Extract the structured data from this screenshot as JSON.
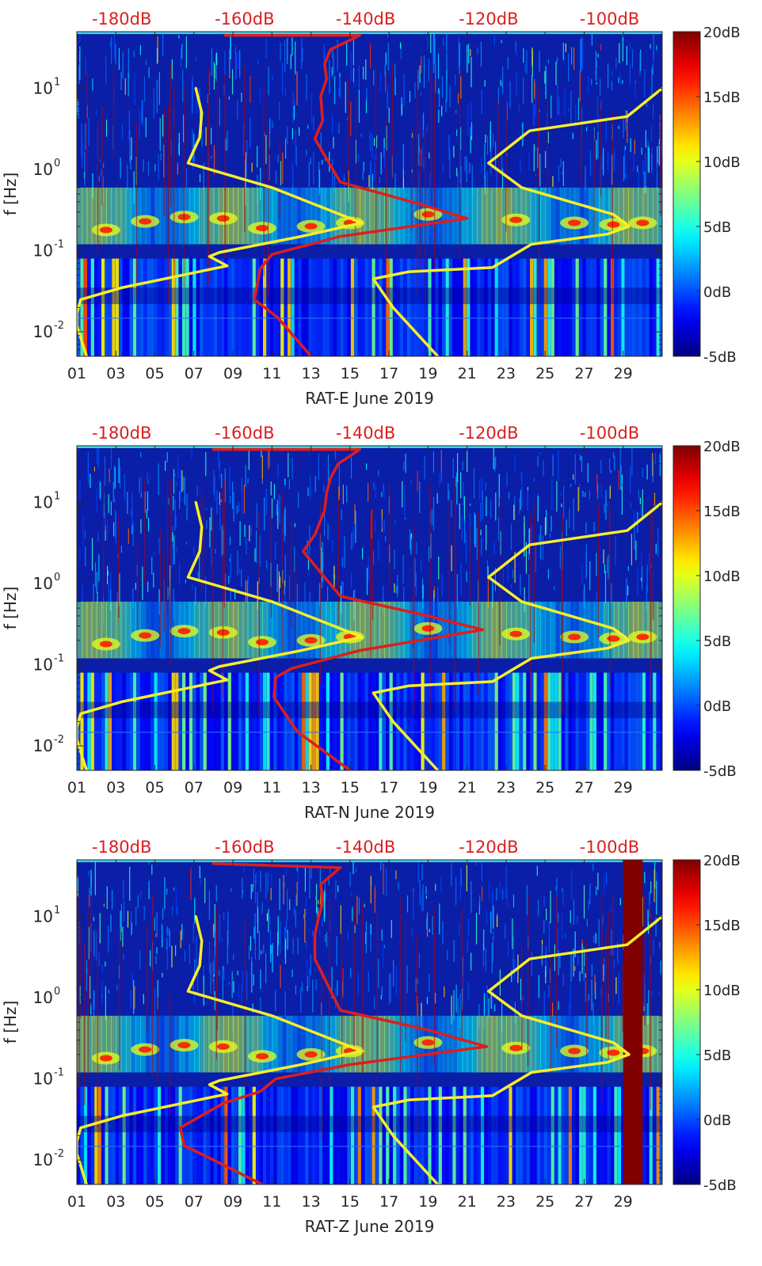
{
  "chart_data": [
    {
      "type": "heatmap",
      "title": "",
      "xlabel": "RAT-E June 2019",
      "ylabel": "f [Hz]",
      "x_tick_labels": [
        "01",
        "03",
        "05",
        "07",
        "09",
        "11",
        "13",
        "15",
        "17",
        "19",
        "21",
        "23",
        "25",
        "27",
        "29"
      ],
      "x_tick_days": [
        1,
        3,
        5,
        7,
        9,
        11,
        13,
        15,
        17,
        19,
        21,
        23,
        25,
        27,
        29
      ],
      "xlim": [
        1,
        31
      ],
      "y_scale": "log",
      "ylim": [
        0.005,
        50
      ],
      "y_tick_values": [
        0.01,
        0.1,
        1,
        10
      ],
      "y_tick_bases": [
        "10",
        "10",
        "10",
        "10"
      ],
      "y_tick_exponents": [
        "-2",
        "-1",
        "0",
        "1"
      ],
      "top_axis_labels": [
        "-180dB",
        "-160dB",
        "-140dB",
        "-120dB",
        "-100dB"
      ],
      "top_axis_days": [
        3.3,
        9.6,
        15.8,
        22.1,
        28.3
      ],
      "colorbar": {
        "labels": [
          "20dB",
          "15dB",
          "10dB",
          "5dB",
          "0dB",
          "-5dB"
        ],
        "range": [
          -5,
          20
        ]
      },
      "series": [
        {
          "name": "yellow line low",
          "points": [
            [
              1.5,
              0.005
            ],
            [
              1,
              0.012
            ],
            [
              1,
              0.017
            ],
            [
              1.2,
              0.025
            ],
            [
              3.3,
              0.035
            ],
            [
              7.7,
              0.058
            ],
            [
              8.7,
              0.065
            ],
            [
              7.8,
              0.085
            ],
            [
              8.3,
              0.095
            ],
            [
              12.5,
              0.15
            ],
            [
              15.6,
              0.22
            ],
            [
              11,
              0.6
            ],
            [
              6.7,
              1.2
            ],
            [
              7.3,
              2.5
            ],
            [
              7.4,
              5
            ],
            [
              7.1,
              10
            ]
          ]
        },
        {
          "name": "yellow line high",
          "points": [
            [
              19.5,
              0.005
            ],
            [
              17.2,
              0.02
            ],
            [
              16.2,
              0.045
            ],
            [
              18,
              0.055
            ],
            [
              22.3,
              0.062
            ],
            [
              24.3,
              0.12
            ],
            [
              28.2,
              0.16
            ],
            [
              29.3,
              0.2
            ],
            [
              28.5,
              0.28
            ],
            [
              23.8,
              0.6
            ],
            [
              22.1,
              1.2
            ],
            [
              24.2,
              3
            ],
            [
              29.2,
              4.5
            ],
            [
              31,
              10
            ]
          ]
        },
        {
          "name": "red line",
          "points": [
            [
              13,
              0.005
            ],
            [
              11.3,
              0.015
            ],
            [
              10.1,
              0.025
            ],
            [
              10.4,
              0.06
            ],
            [
              11,
              0.09
            ],
            [
              14.5,
              0.15
            ],
            [
              21,
              0.25
            ],
            [
              18.5,
              0.38
            ],
            [
              14.5,
              0.7
            ],
            [
              13.2,
              2.4
            ],
            [
              13.6,
              4
            ],
            [
              13.5,
              8
            ],
            [
              13.8,
              13
            ],
            [
              13.7,
              20
            ],
            [
              14,
              30
            ],
            [
              15.5,
              45
            ],
            [
              8.6,
              45
            ]
          ]
        }
      ],
      "visual_features": {
        "saturated_band": null
      }
    },
    {
      "type": "heatmap",
      "title": "",
      "xlabel": "RAT-N June 2019",
      "ylabel": "f [Hz]",
      "x_tick_labels": [
        "01",
        "03",
        "05",
        "07",
        "09",
        "11",
        "13",
        "15",
        "17",
        "19",
        "21",
        "23",
        "25",
        "27",
        "29"
      ],
      "x_tick_days": [
        1,
        3,
        5,
        7,
        9,
        11,
        13,
        15,
        17,
        19,
        21,
        23,
        25,
        27,
        29
      ],
      "xlim": [
        1,
        31
      ],
      "y_scale": "log",
      "ylim": [
        0.005,
        50
      ],
      "y_tick_values": [
        0.01,
        0.1,
        1,
        10
      ],
      "y_tick_bases": [
        "10",
        "10",
        "10",
        "10"
      ],
      "y_tick_exponents": [
        "-2",
        "-1",
        "0",
        "1"
      ],
      "top_axis_labels": [
        "-180dB",
        "-160dB",
        "-140dB",
        "-120dB",
        "-100dB"
      ],
      "top_axis_days": [
        3.3,
        9.6,
        15.8,
        22.1,
        28.3
      ],
      "colorbar": {
        "labels": [
          "20dB",
          "15dB",
          "10dB",
          "5dB",
          "0dB",
          "-5dB"
        ],
        "range": [
          -5,
          20
        ]
      },
      "series": [
        {
          "name": "yellow line low",
          "points": [
            [
              1.5,
              0.005
            ],
            [
              1,
              0.012
            ],
            [
              1,
              0.017
            ],
            [
              1.2,
              0.025
            ],
            [
              3.3,
              0.035
            ],
            [
              7.7,
              0.058
            ],
            [
              8.7,
              0.065
            ],
            [
              7.8,
              0.085
            ],
            [
              8.3,
              0.095
            ],
            [
              12.5,
              0.15
            ],
            [
              15.6,
              0.22
            ],
            [
              11,
              0.6
            ],
            [
              6.7,
              1.2
            ],
            [
              7.3,
              2.5
            ],
            [
              7.4,
              5
            ],
            [
              7.1,
              10
            ]
          ]
        },
        {
          "name": "yellow line high",
          "points": [
            [
              19.5,
              0.005
            ],
            [
              17.2,
              0.02
            ],
            [
              16.2,
              0.045
            ],
            [
              18,
              0.055
            ],
            [
              22.3,
              0.062
            ],
            [
              24.3,
              0.12
            ],
            [
              28.2,
              0.16
            ],
            [
              29.3,
              0.2
            ],
            [
              28.5,
              0.28
            ],
            [
              23.8,
              0.6
            ],
            [
              22.1,
              1.2
            ],
            [
              24.2,
              3
            ],
            [
              29.2,
              4.5
            ],
            [
              31,
              10
            ]
          ]
        },
        {
          "name": "red line",
          "points": [
            [
              15,
              0.005
            ],
            [
              12.3,
              0.015
            ],
            [
              11.1,
              0.04
            ],
            [
              11.2,
              0.07
            ],
            [
              12,
              0.09
            ],
            [
              15.5,
              0.15
            ],
            [
              21.8,
              0.27
            ],
            [
              19,
              0.4
            ],
            [
              14.5,
              0.7
            ],
            [
              12.6,
              2.5
            ],
            [
              13.2,
              4
            ],
            [
              13.7,
              8
            ],
            [
              13.8,
              13
            ],
            [
              14,
              20
            ],
            [
              14.4,
              30
            ],
            [
              15.5,
              45
            ],
            [
              8,
              45
            ]
          ]
        }
      ],
      "visual_features": {
        "saturated_band": null
      }
    },
    {
      "type": "heatmap",
      "title": "",
      "xlabel": "RAT-Z June 2019",
      "ylabel": "f [Hz]",
      "x_tick_labels": [
        "01",
        "03",
        "05",
        "07",
        "09",
        "11",
        "13",
        "15",
        "17",
        "19",
        "21",
        "23",
        "25",
        "27",
        "29"
      ],
      "x_tick_days": [
        1,
        3,
        5,
        7,
        9,
        11,
        13,
        15,
        17,
        19,
        21,
        23,
        25,
        27,
        29
      ],
      "xlim": [
        1,
        31
      ],
      "y_scale": "log",
      "ylim": [
        0.005,
        50
      ],
      "y_tick_values": [
        0.01,
        0.1,
        1,
        10
      ],
      "y_tick_bases": [
        "10",
        "10",
        "10",
        "10"
      ],
      "y_tick_exponents": [
        "-2",
        "-1",
        "0",
        "1"
      ],
      "top_axis_labels": [
        "-180dB",
        "-160dB",
        "-140dB",
        "-120dB",
        "-100dB"
      ],
      "top_axis_days": [
        3.3,
        9.6,
        15.8,
        22.1,
        28.3
      ],
      "colorbar": {
        "labels": [
          "20dB",
          "15dB",
          "10dB",
          "5dB",
          "0dB",
          "-5dB"
        ],
        "range": [
          -5,
          20
        ]
      },
      "series": [
        {
          "name": "yellow line low",
          "points": [
            [
              1.5,
              0.005
            ],
            [
              1,
              0.012
            ],
            [
              1,
              0.017
            ],
            [
              1.2,
              0.025
            ],
            [
              3.3,
              0.035
            ],
            [
              7.7,
              0.058
            ],
            [
              8.7,
              0.065
            ],
            [
              7.8,
              0.085
            ],
            [
              8.3,
              0.095
            ],
            [
              12.5,
              0.15
            ],
            [
              15.6,
              0.22
            ],
            [
              11,
              0.6
            ],
            [
              6.7,
              1.2
            ],
            [
              7.3,
              2.5
            ],
            [
              7.4,
              5
            ],
            [
              7.1,
              10
            ]
          ]
        },
        {
          "name": "yellow line high",
          "points": [
            [
              19.5,
              0.005
            ],
            [
              17.2,
              0.02
            ],
            [
              16.2,
              0.045
            ],
            [
              18,
              0.055
            ],
            [
              22.3,
              0.062
            ],
            [
              24.3,
              0.12
            ],
            [
              28.2,
              0.16
            ],
            [
              29.3,
              0.2
            ],
            [
              28.5,
              0.28
            ],
            [
              23.8,
              0.6
            ],
            [
              22.1,
              1.2
            ],
            [
              24.2,
              3
            ],
            [
              29.2,
              4.5
            ],
            [
              31,
              10
            ]
          ]
        },
        {
          "name": "red line",
          "points": [
            [
              10.5,
              0.005
            ],
            [
              8,
              0.01
            ],
            [
              6.5,
              0.015
            ],
            [
              6.3,
              0.025
            ],
            [
              8.5,
              0.05
            ],
            [
              10.4,
              0.07
            ],
            [
              11.2,
              0.1
            ],
            [
              15,
              0.15
            ],
            [
              22,
              0.25
            ],
            [
              19,
              0.4
            ],
            [
              14.5,
              0.7
            ],
            [
              13.2,
              3
            ],
            [
              13.2,
              6
            ],
            [
              13.4,
              10
            ],
            [
              13.6,
              15
            ],
            [
              13.5,
              25
            ],
            [
              14.5,
              40
            ],
            [
              8,
              45
            ]
          ]
        }
      ],
      "visual_features": {
        "saturated_band": [
          29,
          30
        ]
      }
    }
  ],
  "colors": {
    "red": "#dc1e1e",
    "yellow": "#f5ee2a",
    "jet_low": "#00008f",
    "jet_high": "#800000"
  }
}
